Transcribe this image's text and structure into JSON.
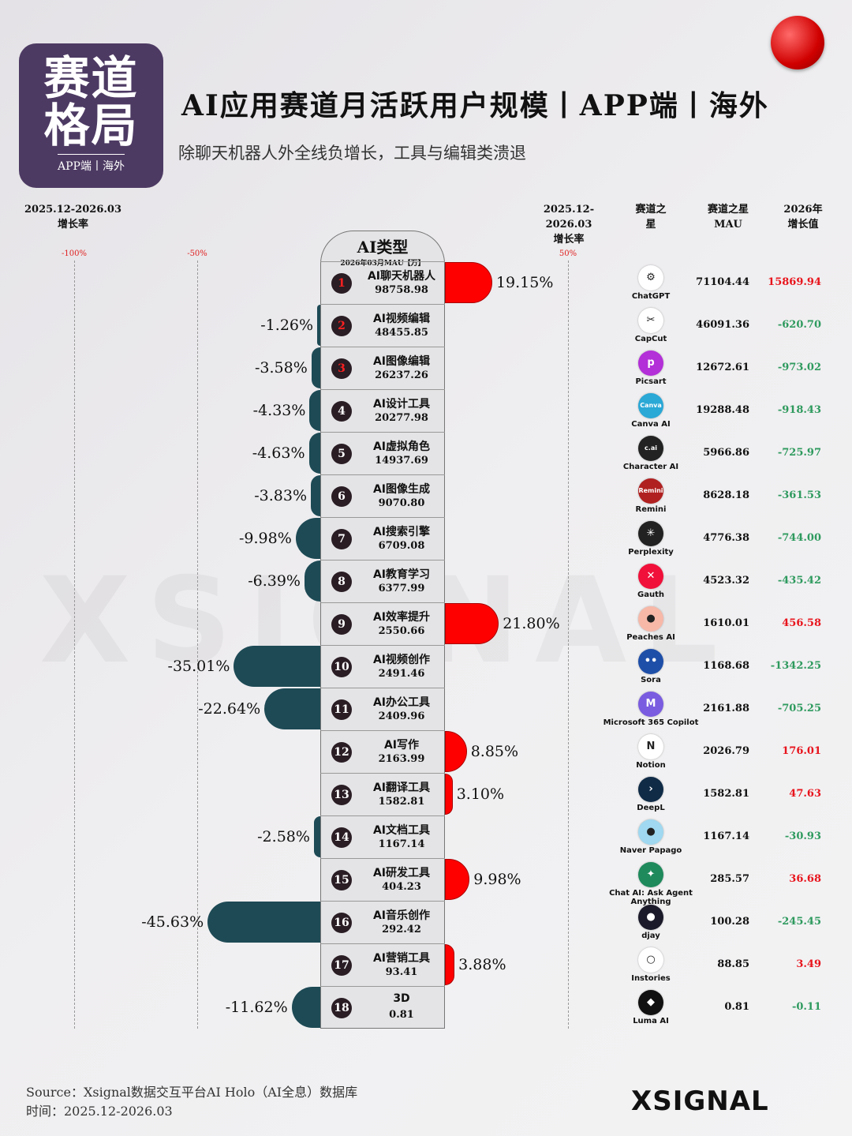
{
  "badge": {
    "line1": "赛道",
    "line2": "格局",
    "sub": "APP端丨海外"
  },
  "title": "AI应用赛道月活跃用户规模丨APP端丨海外",
  "subtitle": "除聊天机器人外全线负增长，工具与编辑类溃退",
  "left_header": {
    "period": "2025.12-2026.03",
    "label": "增长率"
  },
  "right_headers": {
    "rate_period": "2025.12-2026.03",
    "rate_label": "增长率",
    "star": "赛道之星",
    "star_mau": "赛道之星MAU",
    "growth": "2026年增长值"
  },
  "colors": {
    "positive": "#ff0000",
    "negative": "#1d4a55",
    "growth_up": "#e8141c",
    "growth_down": "#2e9a5e"
  },
  "watermark": "XSIGNAL",
  "footer": {
    "source": "Source：Xsignal数据交互平台AI Holo（AI全息）数据库",
    "time": "时间：2025.12-2026.03",
    "logo": "XSIGNAL"
  },
  "chart_data": {
    "type": "bar",
    "title": "AI应用赛道月活跃用户规模丨APP端丨海外",
    "column_header": "AI类型",
    "column_subheader": "2026年03月MAU【万】",
    "axis_ticks": [
      "-100%",
      "-50%",
      "50%"
    ],
    "xlim": [
      -100,
      60
    ],
    "unit": "%",
    "rows": [
      {
        "rank": "1",
        "category": "AI聊天机器人",
        "mau": "98758.98",
        "growth": 19.15,
        "growth_label": "19.15%",
        "app": "ChatGPT",
        "app_mau": "71104.44",
        "app_growth": "15869.94",
        "icon_color": "#ffffff",
        "icon_text": "⚙"
      },
      {
        "rank": "2",
        "category": "AI视频编辑",
        "mau": "48455.85",
        "growth": -1.26,
        "growth_label": "-1.26%",
        "app": "CapCut",
        "app_mau": "46091.36",
        "app_growth": "-620.70",
        "icon_color": "#ffffff",
        "icon_text": "✂"
      },
      {
        "rank": "3",
        "category": "AI图像编辑",
        "mau": "26237.26",
        "growth": -3.58,
        "growth_label": "-3.58%",
        "app": "Picsart",
        "app_mau": "12672.61",
        "app_growth": "-973.02",
        "icon_color": "#b32fd8",
        "icon_text": "p"
      },
      {
        "rank": "4",
        "category": "AI设计工具",
        "mau": "20277.98",
        "growth": -4.33,
        "growth_label": "-4.33%",
        "app": "Canva AI",
        "app_mau": "19288.48",
        "app_growth": "-918.43",
        "icon_color": "#2aa8d6",
        "icon_text": "Canva"
      },
      {
        "rank": "5",
        "category": "AI虚拟角色",
        "mau": "14937.69",
        "growth": -4.63,
        "growth_label": "-4.63%",
        "app": "Character AI",
        "app_mau": "5966.86",
        "app_growth": "-725.97",
        "icon_color": "#222222",
        "icon_text": "c.ai"
      },
      {
        "rank": "6",
        "category": "AI图像生成",
        "mau": "9070.80",
        "growth": -3.83,
        "growth_label": "-3.83%",
        "app": "Remini",
        "app_mau": "8628.18",
        "app_growth": "-361.53",
        "icon_color": "#b02020",
        "icon_text": "Remini"
      },
      {
        "rank": "7",
        "category": "AI搜索引擎",
        "mau": "6709.08",
        "growth": -9.98,
        "growth_label": "-9.98%",
        "app": "Perplexity",
        "app_mau": "4776.38",
        "app_growth": "-744.00",
        "icon_color": "#222222",
        "icon_text": "✳"
      },
      {
        "rank": "8",
        "category": "AI教育学习",
        "mau": "6377.99",
        "growth": -6.39,
        "growth_label": "-6.39%",
        "app": "Gauth",
        "app_mau": "4523.32",
        "app_growth": "-435.42",
        "icon_color": "#f0103a",
        "icon_text": "✕"
      },
      {
        "rank": "9",
        "category": "AI效率提升",
        "mau": "2550.66",
        "growth": 21.8,
        "growth_label": "21.80%",
        "app": "Peaches AI",
        "app_mau": "1610.01",
        "app_growth": "456.58",
        "icon_color": "#f7b8a8",
        "icon_text": "●"
      },
      {
        "rank": "10",
        "category": "AI视频创作",
        "mau": "2491.46",
        "growth": -35.01,
        "growth_label": "-35.01%",
        "app": "Sora",
        "app_mau": "1168.68",
        "app_growth": "-1342.25",
        "icon_color": "#1e4fa8",
        "icon_text": "••"
      },
      {
        "rank": "11",
        "category": "AI办公工具",
        "mau": "2409.96",
        "growth": -22.64,
        "growth_label": "-22.64%",
        "app": "Microsoft 365 Copilot",
        "app_mau": "2161.88",
        "app_growth": "-705.25",
        "icon_color": "#7a5ce0",
        "icon_text": "M"
      },
      {
        "rank": "12",
        "category": "AI写作",
        "mau": "2163.99",
        "growth": 8.85,
        "growth_label": "8.85%",
        "app": "Notion",
        "app_mau": "2026.79",
        "app_growth": "176.01",
        "icon_color": "#ffffff",
        "icon_text": "N"
      },
      {
        "rank": "13",
        "category": "AI翻译工具",
        "mau": "1582.81",
        "growth": 3.1,
        "growth_label": "3.10%",
        "app": "DeepL",
        "app_mau": "1582.81",
        "app_growth": "47.63",
        "icon_color": "#0f2b46",
        "icon_text": "›"
      },
      {
        "rank": "14",
        "category": "AI文档工具",
        "mau": "1167.14",
        "growth": -2.58,
        "growth_label": "-2.58%",
        "app": "Naver Papago",
        "app_mau": "1167.14",
        "app_growth": "-30.93",
        "icon_color": "#9fd8f0",
        "icon_text": "●"
      },
      {
        "rank": "15",
        "category": "AI研发工具",
        "mau": "404.23",
        "growth": 9.98,
        "growth_label": "9.98%",
        "app": "Chat AI: Ask Agent Anything",
        "app_mau": "285.57",
        "app_growth": "36.68",
        "icon_color": "#1f8a5c",
        "icon_text": "✦"
      },
      {
        "rank": "16",
        "category": "AI音乐创作",
        "mau": "292.42",
        "growth": -45.63,
        "growth_label": "-45.63%",
        "app": "djay",
        "app_mau": "100.28",
        "app_growth": "-245.45",
        "icon_color": "#1a1a2a",
        "icon_text": "●"
      },
      {
        "rank": "17",
        "category": "AI营销工具",
        "mau": "93.41",
        "growth": 3.88,
        "growth_label": "3.88%",
        "app": "Instories",
        "app_mau": "88.85",
        "app_growth": "3.49",
        "icon_color": "#ffffff",
        "icon_text": "○"
      },
      {
        "rank": "18",
        "category": "3D",
        "mau": "0.81",
        "growth": -11.62,
        "growth_label": "-11.62%",
        "app": "Luma AI",
        "app_mau": "0.81",
        "app_growth": "-0.11",
        "icon_color": "#111111",
        "icon_text": "◆"
      }
    ]
  }
}
